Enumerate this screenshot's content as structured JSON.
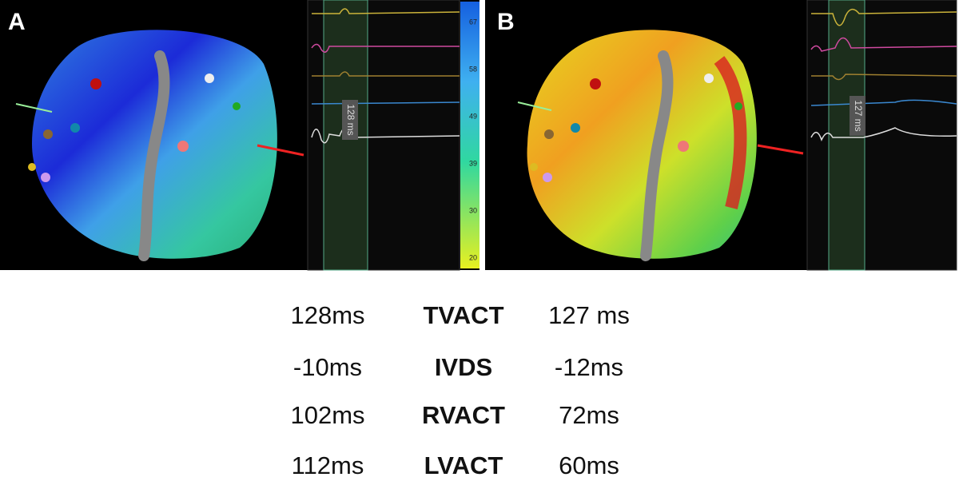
{
  "panels": [
    {
      "label": "A",
      "marker": "128 ms"
    },
    {
      "label": "B",
      "marker": "127 ms"
    }
  ],
  "colorbar": {
    "ticks": [
      67,
      58,
      49,
      39,
      30,
      20
    ]
  },
  "table": {
    "rows": [
      [
        "128ms",
        "TVACT",
        "127 ms"
      ],
      [
        "-10ms",
        "IVDS",
        "-12ms"
      ],
      [
        "102ms",
        "RVACT",
        "72ms"
      ],
      [
        "112ms",
        "LVACT",
        "60ms"
      ]
    ]
  }
}
